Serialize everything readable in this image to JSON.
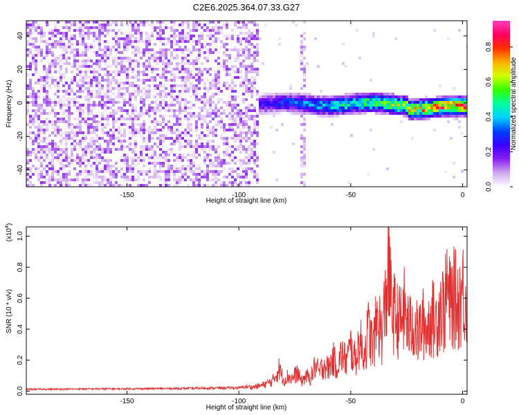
{
  "title": "C2E6.2025.364.07.33.G27",
  "chart_data": [
    {
      "type": "heatmap",
      "title": "C2E6.2025.364.07.33.G27",
      "xlabel": "Height of straight line (km)",
      "ylabel": "Frequency (Hz)",
      "xlim": [
        -195,
        2
      ],
      "ylim": [
        -50,
        49
      ],
      "xticks": [
        -150,
        -100,
        -50,
        0
      ],
      "xtick_labels": [
        "-150",
        "-100",
        "-50",
        "0"
      ],
      "yticks": [
        -40,
        -20,
        0,
        20,
        40
      ],
      "ytick_labels": [
        "-40",
        "-20",
        "0",
        "20",
        "40"
      ],
      "colorbar": {
        "label": "Normalized spectral amplitude",
        "range": [
          0,
          0.95
        ],
        "ticks": [
          0.0,
          0.2,
          0.4,
          0.6,
          0.8
        ],
        "tick_labels": [
          "0.0",
          "0.2",
          "0.4",
          "0.6",
          "0.8"
        ],
        "colors": [
          "#ffffff",
          "#cfa8f0",
          "#8a1ef0",
          "#3a00ff",
          "#0040ff",
          "#00d0ff",
          "#00ffa0",
          "#33ff00",
          "#d0ff00",
          "#ffb000",
          "#ff3000",
          "#ff0060",
          "#ff40c0"
        ]
      },
      "features": [
        {
          "name": "broadband noise",
          "x_range": [
            -195,
            -92
          ],
          "amplitude_range": [
            0.02,
            0.15
          ]
        },
        {
          "name": "signal ridge",
          "x_range": [
            -92,
            2
          ],
          "frequency_hz": 0,
          "peak_amplitude": 0.9
        }
      ]
    },
    {
      "type": "line",
      "xlabel": "Height of straight line (km)",
      "ylabel": "SNR (10 * v/v)",
      "y_scale_label": "(x10",
      "y_scale_exp": "4",
      "y_scale_close": ")",
      "xlim": [
        -195,
        2
      ],
      "ylim": [
        -0.02,
        1.06
      ],
      "xticks": [
        -150,
        -100,
        -50,
        0
      ],
      "xtick_labels": [
        "-150",
        "-100",
        "-50",
        "0"
      ],
      "yticks": [
        0.0,
        0.2,
        0.4,
        0.6,
        0.8,
        1.0
      ],
      "ytick_labels": [
        "0.0",
        "0.2",
        "0.4",
        "0.6",
        "0.8",
        "1.0"
      ],
      "color": "#e03030",
      "series": [
        {
          "name": "SNR",
          "x": [
            -195,
            -180,
            -160,
            -140,
            -120,
            -110,
            -100,
            -95,
            -90,
            -85,
            -82,
            -80,
            -78,
            -76,
            -74,
            -72,
            -70,
            -68,
            -66,
            -64,
            -62,
            -60,
            -58,
            -56,
            -54,
            -52,
            -50,
            -48,
            -46,
            -44,
            -42,
            -40,
            -38,
            -36,
            -34,
            -33,
            -32,
            -30,
            -28,
            -26,
            -24,
            -22,
            -20,
            -18,
            -16,
            -14,
            -12,
            -10,
            -8,
            -7,
            -6,
            -4,
            -2,
            0,
            2
          ],
          "y": [
            0.012,
            0.013,
            0.015,
            0.016,
            0.018,
            0.02,
            0.022,
            0.03,
            0.045,
            0.08,
            0.18,
            0.09,
            0.12,
            0.1,
            0.15,
            0.08,
            0.12,
            0.1,
            0.2,
            0.15,
            0.22,
            0.18,
            0.26,
            0.2,
            0.3,
            0.24,
            0.35,
            0.25,
            0.4,
            0.3,
            0.5,
            0.35,
            0.6,
            0.45,
            0.8,
            1.05,
            0.7,
            0.6,
            0.55,
            0.65,
            0.5,
            0.55,
            0.45,
            0.55,
            0.5,
            0.6,
            0.55,
            0.7,
            0.65,
            0.86,
            0.7,
            0.75,
            0.72,
            0.8,
            0.75
          ]
        }
      ]
    }
  ]
}
